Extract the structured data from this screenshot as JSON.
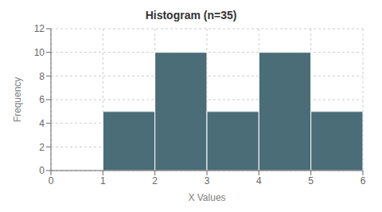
{
  "chart_data": {
    "type": "histogram",
    "title": "Histogram (n=35)",
    "xlabel": "X Values",
    "ylabel": "Frequency",
    "bins": [
      1,
      2,
      3,
      4,
      5,
      6
    ],
    "values": [
      5,
      10,
      5,
      10,
      5
    ],
    "color": "#4a6d78",
    "xlim": [
      0,
      6
    ],
    "xticks": [
      0,
      1,
      2,
      3,
      4,
      5,
      6
    ],
    "ylim": [
      0,
      12
    ],
    "yticks": [
      0,
      2,
      4,
      6,
      8,
      10,
      12
    ],
    "grid": true
  }
}
